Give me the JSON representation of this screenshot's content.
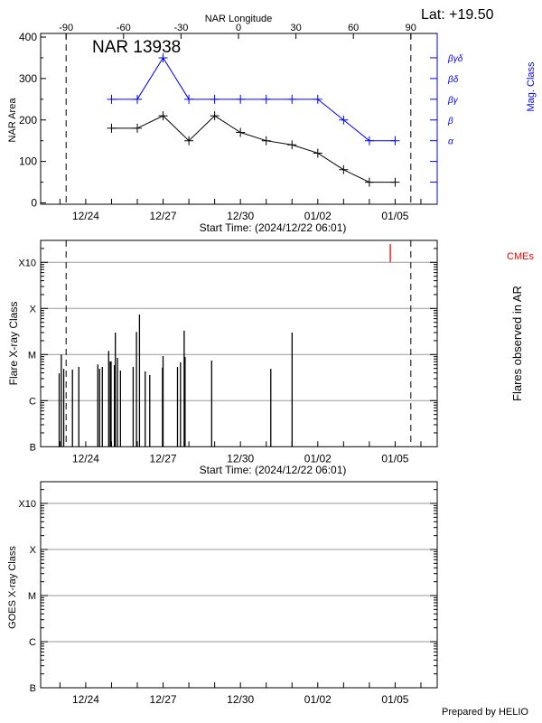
{
  "chart_data": [
    {
      "type": "line",
      "title": "NAR 13938",
      "subtitle": "Lat: +19.50",
      "xlabel": "Start Time: (2024/12/22 06:01)",
      "x_top_label": "NAR Longitude",
      "ylabel": "NAR Area",
      "y2label": "Mag. Class",
      "xlim": [
        "2024-12-22T06:01",
        "2025-01-06T15:10"
      ],
      "ylim": [
        0,
        400
      ],
      "yticks": [
        "0",
        "100",
        "200",
        "300",
        "400"
      ],
      "xticks": [
        {
          "label": "12/24",
          "date": "2024-12-24T00:00"
        },
        {
          "label": "12/27",
          "date": "2024-12-27T00:00"
        },
        {
          "label": "12/30",
          "date": "2024-12-30T00:00"
        },
        {
          "label": "01/02",
          "date": "2025-01-02T00:00"
        },
        {
          "label": "01/05",
          "date": "2025-01-05T00:00"
        }
      ],
      "longitude_ticks": [
        "-90",
        "-60",
        "-30",
        "0",
        "30",
        "60",
        "90"
      ],
      "limb_lines_longitude": [
        -90,
        90
      ],
      "y2_ticks": [
        {
          "label": "",
          "value": 50
        },
        {
          "label": "",
          "value": 100
        },
        {
          "label": "α",
          "value": 150
        },
        {
          "label": "β",
          "value": 200
        },
        {
          "label": "βγ",
          "value": 250
        },
        {
          "label": "βδ",
          "value": 300
        },
        {
          "label": "βγδ",
          "value": 350
        }
      ],
      "x": [
        "2024-12-25T00:00",
        "2024-12-26T00:00",
        "2024-12-27T00:00",
        "2024-12-28T00:00",
        "2024-12-29T00:00",
        "2024-12-30T00:00",
        "2024-12-31T00:00",
        "2025-01-01T00:00",
        "2025-01-02T00:00",
        "2025-01-03T00:00",
        "2025-01-04T00:00",
        "2025-01-05T00:00"
      ],
      "series": [
        {
          "values": [
            180,
            180,
            210,
            150,
            210,
            170,
            150,
            140,
            120,
            80,
            50,
            50
          ],
          "color": "#000000"
        },
        {
          "values": [
            "βγ",
            "βγ",
            "βγδ",
            "βγ",
            "βγ",
            "βγ",
            "βγ",
            "βγ",
            "βγ",
            "β",
            "α",
            "α"
          ],
          "color": "#0000ff"
        }
      ],
      "grid": false
    },
    {
      "type": "bar",
      "xlabel": "Start Time: (2024/12/22 06:01)",
      "ylabel": "Flare X-ray Class",
      "y2label": "Flares observed in AR",
      "cme_label": "CMEs",
      "cme_color": "#ff0000",
      "yscale": "log",
      "yticks": [
        "B",
        "C",
        "M",
        "X",
        "X10"
      ],
      "grid": true,
      "xticks": [
        "12/24",
        "12/27",
        "12/30",
        "01/02",
        "01/05"
      ],
      "flares": [
        {
          "time": "2024-12-22T23:16",
          "class": "C3.9"
        },
        {
          "time": "2024-12-23T01:15",
          "class": "M1.0"
        },
        {
          "time": "2024-12-23T03:30",
          "class": "C4.9"
        },
        {
          "time": "2024-12-23T11:38",
          "class": "C4.7"
        },
        {
          "time": "2024-12-23T17:33",
          "class": "C5.4"
        },
        {
          "time": "2024-12-24T11:13",
          "class": "C6.1"
        },
        {
          "time": "2024-12-24T12:55",
          "class": "C4.9"
        },
        {
          "time": "2024-12-24T15:26",
          "class": "C5.4"
        },
        {
          "time": "2024-12-24T21:20",
          "class": "M1.2"
        },
        {
          "time": "2024-12-24T22:45",
          "class": "C7.1"
        },
        {
          "time": "2024-12-24T23:35",
          "class": "C7.1"
        },
        {
          "time": "2024-12-25T02:42",
          "class": "C5.9"
        },
        {
          "time": "2024-12-25T03:33",
          "class": "M3.0"
        },
        {
          "time": "2024-12-25T05:31",
          "class": "C8.5"
        },
        {
          "time": "2024-12-25T08:19",
          "class": "C4.5"
        },
        {
          "time": "2024-12-25T20:08",
          "class": "C5.4"
        },
        {
          "time": "2024-12-25T23:13",
          "class": "M3.1"
        },
        {
          "time": "2024-12-26T02:01",
          "class": "M7.4"
        },
        {
          "time": "2024-12-26T07:21",
          "class": "C4.3"
        },
        {
          "time": "2024-12-26T11:35",
          "class": "C3.6"
        },
        {
          "time": "2024-12-26T23:25",
          "class": "C5.2"
        },
        {
          "time": "2024-12-26T23:58",
          "class": "C9.3"
        },
        {
          "time": "2024-12-27T13:25",
          "class": "C5.4"
        },
        {
          "time": "2024-12-27T16:13",
          "class": "C6.8"
        },
        {
          "time": "2024-12-27T19:37",
          "class": "M3.3"
        },
        {
          "time": "2024-12-27T20:27",
          "class": "C8.9"
        },
        {
          "time": "2024-12-28T21:13",
          "class": "C7.4"
        },
        {
          "time": "2024-12-31T04:15",
          "class": "C4.9"
        },
        {
          "time": "2025-01-01T00:05",
          "class": "M3.0"
        }
      ],
      "cmes": [
        "2025-01-04T19:31"
      ]
    },
    {
      "type": "line",
      "ylabel": "GOES X-ray Class",
      "yscale": "log",
      "yticks": [
        "B",
        "C",
        "M",
        "X",
        "X10"
      ],
      "grid": true,
      "xticks": [
        "12/24",
        "12/27",
        "12/30",
        "01/02",
        "01/05"
      ],
      "series": [],
      "footer": "Prepared by HELIO"
    }
  ]
}
